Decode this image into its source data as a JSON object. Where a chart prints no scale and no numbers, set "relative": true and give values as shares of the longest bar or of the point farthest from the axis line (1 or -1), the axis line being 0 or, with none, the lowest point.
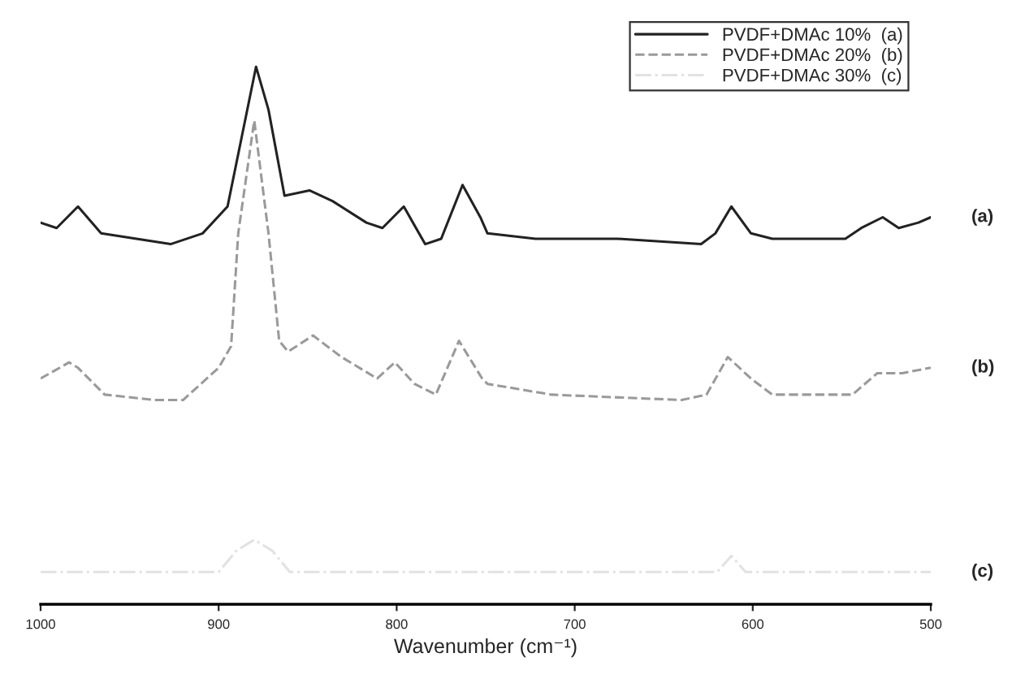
{
  "chart_data": {
    "type": "line",
    "relative": true,
    "xlabel": "Wavenumber (cm⁻¹)",
    "x": [
      1000,
      991,
      979,
      966,
      927,
      909,
      895,
      879,
      872,
      863,
      849,
      836,
      817,
      808,
      796,
      784,
      775,
      763,
      753,
      749,
      722,
      676,
      629,
      621,
      612,
      601,
      589,
      548,
      539,
      527,
      518,
      507,
      500
    ],
    "xlim": [
      1000,
      500
    ],
    "xticks": [
      1000,
      900,
      800,
      700,
      600,
      500
    ],
    "series": [
      {
        "name": "PVDF+DMAc 10%  (a)",
        "color": "#222222",
        "line_style": "solid",
        "values": [
          0.71,
          0.7,
          0.74,
          0.69,
          0.67,
          0.69,
          0.74,
          1.0,
          0.92,
          0.76,
          0.77,
          0.75,
          0.71,
          0.7,
          0.74,
          0.67,
          0.68,
          0.78,
          0.72,
          0.69,
          0.68,
          0.68,
          0.67,
          0.69,
          0.74,
          0.69,
          0.68,
          0.68,
          0.7,
          0.72,
          0.7,
          0.71,
          0.72
        ]
      },
      {
        "name": "PVDF+DMAc 20%  (b)",
        "color": "#9a9a9a",
        "line_style": "dashed",
        "x": [
          1000,
          984,
          979,
          964,
          936,
          920,
          900,
          893,
          889,
          880,
          872,
          866,
          861,
          847,
          831,
          811,
          801,
          790,
          778,
          765,
          752,
          749,
          713,
          640,
          626,
          614,
          601,
          589,
          544,
          530,
          516,
          500
        ],
        "values": [
          0.42,
          0.45,
          0.44,
          0.39,
          0.38,
          0.38,
          0.44,
          0.48,
          0.69,
          0.9,
          0.69,
          0.49,
          0.47,
          0.5,
          0.46,
          0.42,
          0.45,
          0.41,
          0.39,
          0.49,
          0.42,
          0.41,
          0.39,
          0.38,
          0.39,
          0.46,
          0.42,
          0.39,
          0.39,
          0.43,
          0.43,
          0.44
        ]
      },
      {
        "name": "PVDF+DMAc 30%  (c)",
        "color": "#e2e2e2",
        "line_style": "dashdot",
        "x": [
          1000,
          900,
          890,
          880,
          870,
          860,
          620,
          612,
          604,
          500
        ],
        "values": [
          0.06,
          0.06,
          0.1,
          0.12,
          0.1,
          0.06,
          0.06,
          0.09,
          0.06,
          0.06
        ]
      }
    ],
    "annotations": [
      "(a)",
      "(b)",
      "(c)"
    ],
    "legend": "top right",
    "grid": false
  }
}
